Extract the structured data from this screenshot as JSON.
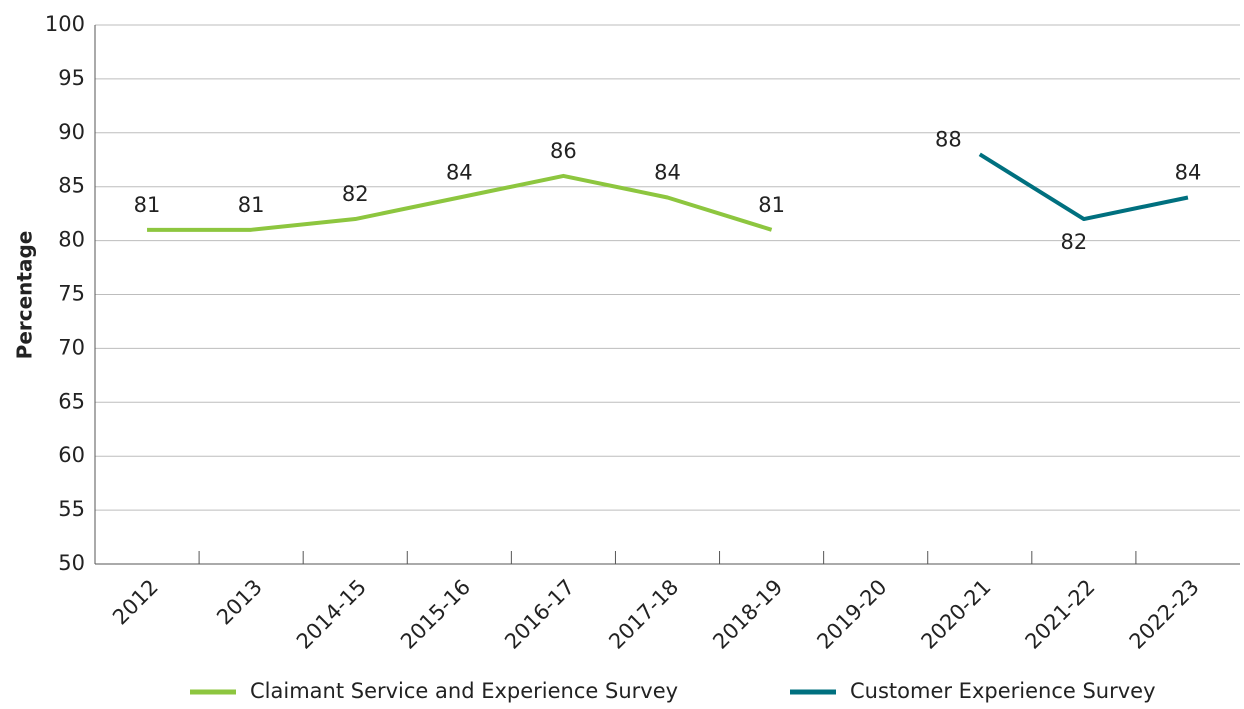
{
  "chart_data": {
    "type": "line",
    "y_label": "Percentage",
    "categories": [
      "2012",
      "2013",
      "2014-15",
      "2015-16",
      "2016-17",
      "2017-18",
      "2018-19",
      "2019-20",
      "2020-21",
      "2021-22",
      "2022-23"
    ],
    "series": [
      {
        "name": "Claimant Service and Experience Survey",
        "color": "#8dc63f",
        "values": [
          81,
          81,
          82,
          84,
          86,
          84,
          81,
          null,
          null,
          null,
          null
        ]
      },
      {
        "name": "Customer Experience Survey",
        "color": "#00707f",
        "values": [
          null,
          null,
          null,
          null,
          null,
          null,
          null,
          null,
          88,
          82,
          84
        ]
      }
    ],
    "ylim": [
      50,
      100
    ],
    "yticks": [
      50,
      55,
      60,
      65,
      70,
      75,
      80,
      85,
      90,
      95,
      100
    ],
    "grid": true,
    "legend": "bottom"
  }
}
